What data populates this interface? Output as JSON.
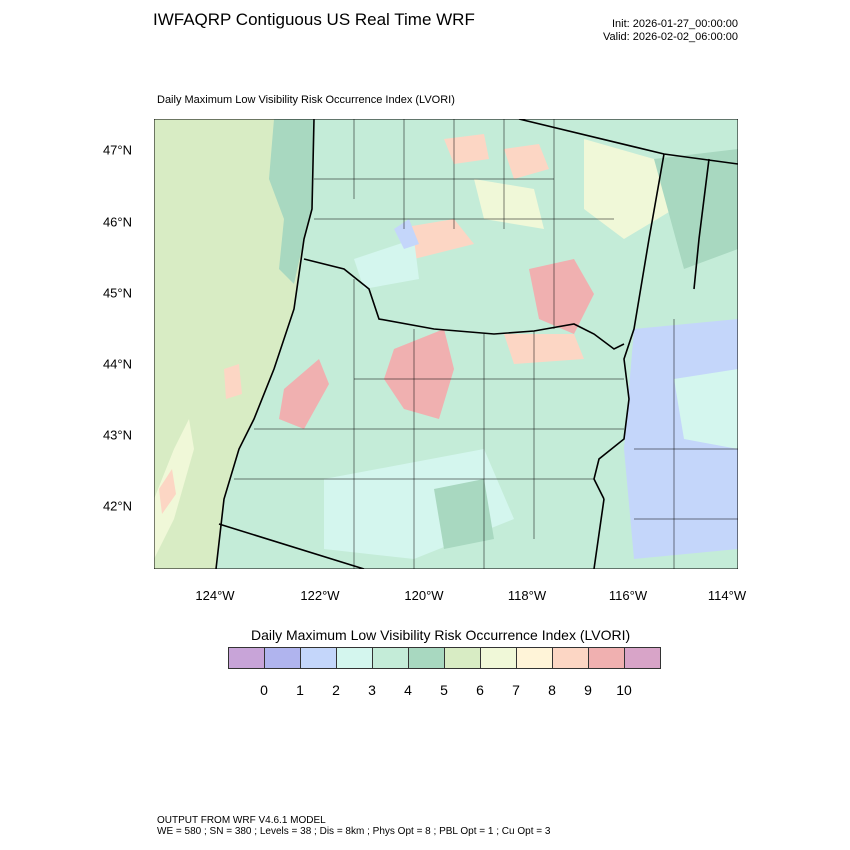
{
  "header": {
    "title": "IWFAQRP Contiguous US Real Time WRF",
    "init": "Init: 2026-01-27_00:00:00",
    "valid": "Valid: 2026-02-02_06:00:00"
  },
  "plot": {
    "subtitle": "Daily Maximum Low Visibility Risk Occurrence Index   (LVORI)",
    "lat_labels": [
      "47°N",
      "46°N",
      "45°N",
      "44°N",
      "43°N",
      "42°N"
    ],
    "lon_labels": [
      "124°W",
      "122°W",
      "120°W",
      "118°W",
      "116°W",
      "114°W"
    ]
  },
  "colorbar": {
    "title": "Daily Maximum Low Visibility Risk Occurrence Index  (LVORI)",
    "labels": [
      "0",
      "1",
      "2",
      "3",
      "4",
      "5",
      "6",
      "7",
      "8",
      "9",
      "10"
    ],
    "colors": [
      "#c8a4d8",
      "#b0b4ee",
      "#c4d6fa",
      "#d4f6ee",
      "#c4ecd8",
      "#a8d8c0",
      "#d8ecc4",
      "#f0f8d8",
      "#fff4d8",
      "#fcd6c4",
      "#f0b0b0",
      "#d8a4c8"
    ]
  },
  "footer": {
    "line1": "OUTPUT FROM WRF V4.6.1 MODEL",
    "line2": "WE = 580 ; SN = 380 ; Levels = 38 ; Dis = 8km ; Phys Opt = 8 ; PBL Opt = 1 ; Cu Opt = 3"
  }
}
